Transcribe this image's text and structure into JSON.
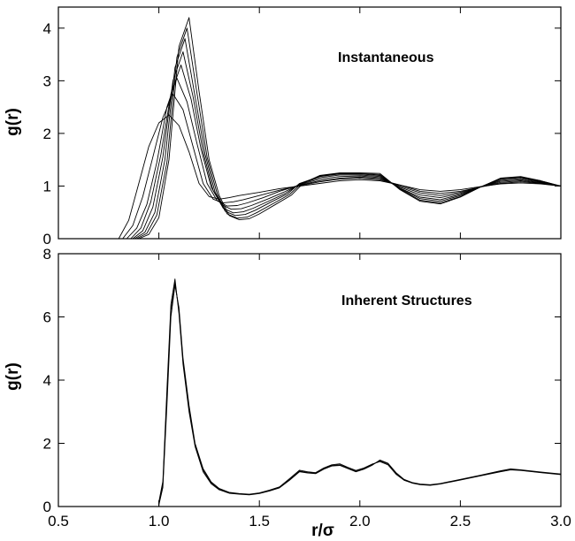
{
  "chart_data": [
    {
      "type": "line",
      "panel": "top",
      "annotation": "Instantaneous",
      "ylabel": "g(r)",
      "xlim": [
        0.5,
        3.0
      ],
      "ylim": [
        0,
        4.4
      ],
      "y_ticks": [
        0,
        1,
        2,
        3,
        4
      ],
      "y_tick_labels": [
        "0",
        "1",
        "2",
        "3",
        "4"
      ],
      "x_ticks": [
        0.5,
        1.0,
        1.5,
        2.0,
        2.5,
        3.0
      ],
      "grid": false,
      "legend": "none",
      "series": [
        {
          "x": [
            0.8,
            0.85,
            0.9,
            0.95,
            1.0,
            1.05,
            1.1,
            1.15,
            1.2,
            1.25,
            1.3,
            1.35,
            1.4,
            1.5,
            1.6,
            1.7,
            1.8,
            1.9,
            2.0,
            2.1,
            2.2,
            2.3,
            2.4,
            2.5,
            2.6,
            2.7,
            2.8,
            2.9,
            3.0
          ],
          "y": [
            0,
            0.35,
            1.05,
            1.75,
            2.2,
            2.35,
            2.15,
            1.65,
            1.05,
            0.8,
            0.75,
            0.78,
            0.82,
            0.88,
            0.95,
            1.0,
            1.05,
            1.1,
            1.12,
            1.1,
            1.02,
            0.93,
            0.9,
            0.93,
            0.99,
            1.04,
            1.06,
            1.04,
            1.0
          ]
        },
        {
          "x": [
            0.82,
            0.87,
            0.92,
            0.97,
            1.02,
            1.07,
            1.12,
            1.17,
            1.22,
            1.27,
            1.32,
            1.37,
            1.42,
            1.5,
            1.6,
            1.7,
            1.8,
            1.9,
            2.0,
            2.1,
            2.2,
            2.3,
            2.4,
            2.5,
            2.6,
            2.7,
            2.8,
            2.9,
            3.0
          ],
          "y": [
            0,
            0.25,
            0.8,
            1.55,
            2.3,
            2.75,
            2.45,
            1.75,
            1.05,
            0.75,
            0.68,
            0.7,
            0.74,
            0.82,
            0.92,
            1.01,
            1.08,
            1.13,
            1.15,
            1.12,
            1.02,
            0.9,
            0.86,
            0.9,
            0.98,
            1.05,
            1.08,
            1.05,
            1.0
          ]
        },
        {
          "x": [
            0.84,
            0.89,
            0.94,
            0.99,
            1.04,
            1.09,
            1.14,
            1.19,
            1.24,
            1.29,
            1.34,
            1.39,
            1.44,
            1.52,
            1.6,
            1.7,
            1.8,
            1.9,
            2.0,
            2.1,
            2.2,
            2.3,
            2.4,
            2.5,
            2.6,
            2.7,
            2.8,
            2.9,
            3.0
          ],
          "y": [
            0,
            0.2,
            0.65,
            1.45,
            2.5,
            3.05,
            2.6,
            1.8,
            1.05,
            0.72,
            0.62,
            0.63,
            0.68,
            0.78,
            0.9,
            1.02,
            1.1,
            1.15,
            1.17,
            1.14,
            1.0,
            0.87,
            0.82,
            0.88,
            0.98,
            1.07,
            1.1,
            1.06,
            1.0
          ]
        },
        {
          "x": [
            0.86,
            0.91,
            0.96,
            1.01,
            1.06,
            1.11,
            1.16,
            1.21,
            1.26,
            1.31,
            1.36,
            1.41,
            1.46,
            1.54,
            1.62,
            1.7,
            1.8,
            1.9,
            2.0,
            2.1,
            2.2,
            2.3,
            2.4,
            2.5,
            2.6,
            2.7,
            2.8,
            2.9,
            3.0
          ],
          "y": [
            0,
            0.2,
            0.7,
            1.6,
            2.75,
            3.3,
            2.65,
            1.7,
            0.98,
            0.65,
            0.56,
            0.57,
            0.63,
            0.75,
            0.88,
            1.03,
            1.13,
            1.18,
            1.19,
            1.16,
            0.98,
            0.83,
            0.78,
            0.86,
            0.98,
            1.09,
            1.12,
            1.07,
            1.0
          ]
        },
        {
          "x": [
            0.87,
            0.92,
            0.97,
            1.02,
            1.07,
            1.12,
            1.17,
            1.22,
            1.27,
            1.32,
            1.37,
            1.42,
            1.47,
            1.55,
            1.63,
            1.7,
            1.8,
            1.9,
            2.0,
            2.1,
            2.2,
            2.3,
            2.4,
            2.5,
            2.6,
            2.7,
            2.8,
            2.9,
            3.0
          ],
          "y": [
            0,
            0.15,
            0.6,
            1.55,
            3.0,
            3.55,
            2.7,
            1.65,
            0.92,
            0.58,
            0.49,
            0.51,
            0.58,
            0.72,
            0.86,
            1.04,
            1.16,
            1.21,
            1.21,
            1.18,
            0.96,
            0.79,
            0.74,
            0.84,
            0.98,
            1.11,
            1.14,
            1.08,
            1.0
          ]
        },
        {
          "x": [
            0.88,
            0.93,
            0.98,
            1.03,
            1.08,
            1.13,
            1.18,
            1.23,
            1.28,
            1.33,
            1.38,
            1.43,
            1.48,
            1.56,
            1.64,
            1.7,
            1.8,
            1.9,
            2.0,
            2.1,
            2.2,
            2.3,
            2.4,
            2.5,
            2.6,
            2.7,
            2.8,
            2.9,
            3.0
          ],
          "y": [
            0,
            0.12,
            0.5,
            1.5,
            3.25,
            3.8,
            2.7,
            1.6,
            0.88,
            0.52,
            0.44,
            0.46,
            0.54,
            0.7,
            0.85,
            1.05,
            1.18,
            1.23,
            1.23,
            1.2,
            0.95,
            0.76,
            0.71,
            0.82,
            0.98,
            1.13,
            1.16,
            1.09,
            1.0
          ]
        },
        {
          "x": [
            0.89,
            0.94,
            0.99,
            1.04,
            1.09,
            1.14,
            1.19,
            1.24,
            1.29,
            1.34,
            1.39,
            1.44,
            1.49,
            1.57,
            1.65,
            1.71,
            1.8,
            1.9,
            2.0,
            2.1,
            2.2,
            2.3,
            2.4,
            2.5,
            2.6,
            2.7,
            2.8,
            2.9,
            3.0
          ],
          "y": [
            0,
            0.1,
            0.45,
            1.45,
            3.45,
            4.0,
            2.75,
            1.55,
            0.85,
            0.47,
            0.39,
            0.41,
            0.5,
            0.67,
            0.84,
            1.05,
            1.19,
            1.24,
            1.24,
            1.22,
            0.94,
            0.73,
            0.68,
            0.8,
            0.98,
            1.14,
            1.17,
            1.1,
            1.0
          ]
        },
        {
          "x": [
            0.9,
            0.95,
            1.0,
            1.05,
            1.1,
            1.15,
            1.2,
            1.25,
            1.3,
            1.35,
            1.4,
            1.45,
            1.5,
            1.58,
            1.66,
            1.72,
            1.8,
            1.9,
            2.0,
            2.1,
            2.2,
            2.3,
            2.4,
            2.5,
            2.6,
            2.7,
            2.8,
            2.9,
            3.0
          ],
          "y": [
            0,
            0.08,
            0.4,
            1.5,
            3.65,
            4.2,
            2.8,
            1.5,
            0.82,
            0.44,
            0.36,
            0.38,
            0.47,
            0.65,
            0.83,
            1.06,
            1.2,
            1.25,
            1.25,
            1.24,
            0.93,
            0.71,
            0.66,
            0.79,
            0.98,
            1.15,
            1.18,
            1.1,
            1.0
          ]
        }
      ]
    },
    {
      "type": "line",
      "panel": "bottom",
      "annotation": "Inherent Structures",
      "ylabel": "g(r)",
      "xlabel": "r/σ",
      "xlim": [
        0.5,
        3.0
      ],
      "ylim": [
        0,
        8
      ],
      "y_ticks": [
        0,
        2,
        4,
        6,
        8
      ],
      "y_tick_labels": [
        "0",
        "2",
        "4",
        "6",
        "8"
      ],
      "x_ticks": [
        0.5,
        1.0,
        1.5,
        2.0,
        2.5,
        3.0
      ],
      "x_tick_labels": [
        "0.5",
        "1.0",
        "1.5",
        "2.0",
        "2.5",
        "3.0"
      ],
      "grid": false,
      "legend": "none",
      "series": [
        {
          "x": [
            1.0,
            1.02,
            1.04,
            1.06,
            1.08,
            1.1,
            1.12,
            1.15,
            1.18,
            1.22,
            1.26,
            1.3,
            1.35,
            1.4,
            1.45,
            1.5,
            1.55,
            1.6,
            1.65,
            1.7,
            1.74,
            1.78,
            1.82,
            1.86,
            1.9,
            1.94,
            1.98,
            2.02,
            2.06,
            2.1,
            2.14,
            2.18,
            2.22,
            2.26,
            2.3,
            2.35,
            2.4,
            2.5,
            2.6,
            2.7,
            2.75,
            2.8,
            2.9,
            3.0
          ],
          "y": [
            0.1,
            0.7,
            3.5,
            6.2,
            7.1,
            6.2,
            4.6,
            3.1,
            1.95,
            1.15,
            0.75,
            0.55,
            0.43,
            0.4,
            0.38,
            0.42,
            0.5,
            0.6,
            0.85,
            1.12,
            1.08,
            1.05,
            1.2,
            1.3,
            1.32,
            1.22,
            1.12,
            1.2,
            1.32,
            1.45,
            1.35,
            1.05,
            0.85,
            0.75,
            0.7,
            0.68,
            0.72,
            0.85,
            0.98,
            1.12,
            1.18,
            1.15,
            1.08,
            1.02
          ]
        },
        {
          "x": [
            1.0,
            1.02,
            1.04,
            1.06,
            1.08,
            1.1,
            1.12,
            1.15,
            1.18,
            1.22,
            1.26,
            1.3,
            1.35,
            1.4,
            1.45,
            1.5,
            1.55,
            1.6,
            1.65,
            1.7,
            1.74,
            1.78,
            1.82,
            1.86,
            1.9,
            1.94,
            1.98,
            2.02,
            2.06,
            2.1,
            2.14,
            2.18,
            2.22,
            2.26,
            2.3,
            2.35,
            2.4,
            2.5,
            2.6,
            2.7,
            2.75,
            2.8,
            2.9,
            3.0
          ],
          "y": [
            0.05,
            0.6,
            3.2,
            6.0,
            7.0,
            6.3,
            4.7,
            3.2,
            2.0,
            1.2,
            0.78,
            0.57,
            0.45,
            0.41,
            0.39,
            0.43,
            0.52,
            0.62,
            0.88,
            1.15,
            1.1,
            1.07,
            1.22,
            1.32,
            1.35,
            1.24,
            1.14,
            1.22,
            1.34,
            1.42,
            1.32,
            1.02,
            0.83,
            0.74,
            0.69,
            0.67,
            0.71,
            0.84,
            0.97,
            1.1,
            1.16,
            1.14,
            1.07,
            1.01
          ]
        },
        {
          "x": [
            1.0,
            1.02,
            1.04,
            1.06,
            1.08,
            1.1,
            1.12,
            1.15,
            1.18,
            1.22,
            1.26,
            1.3,
            1.35,
            1.4,
            1.45,
            1.5,
            1.55,
            1.6,
            1.65,
            1.7,
            1.74,
            1.78,
            1.82,
            1.86,
            1.9,
            1.94,
            1.98,
            2.02,
            2.06,
            2.1,
            2.14,
            2.18,
            2.22,
            2.26,
            2.3,
            2.35,
            2.4,
            2.5,
            2.6,
            2.7,
            2.75,
            2.8,
            2.9,
            3.0
          ],
          "y": [
            0.15,
            0.8,
            3.7,
            6.4,
            7.2,
            6.1,
            4.5,
            3.0,
            1.9,
            1.1,
            0.72,
            0.53,
            0.42,
            0.39,
            0.37,
            0.41,
            0.49,
            0.59,
            0.83,
            1.1,
            1.06,
            1.04,
            1.18,
            1.28,
            1.3,
            1.2,
            1.1,
            1.18,
            1.3,
            1.47,
            1.37,
            1.07,
            0.86,
            0.76,
            0.71,
            0.69,
            0.73,
            0.86,
            0.99,
            1.13,
            1.19,
            1.16,
            1.09,
            1.03
          ]
        }
      ]
    }
  ]
}
